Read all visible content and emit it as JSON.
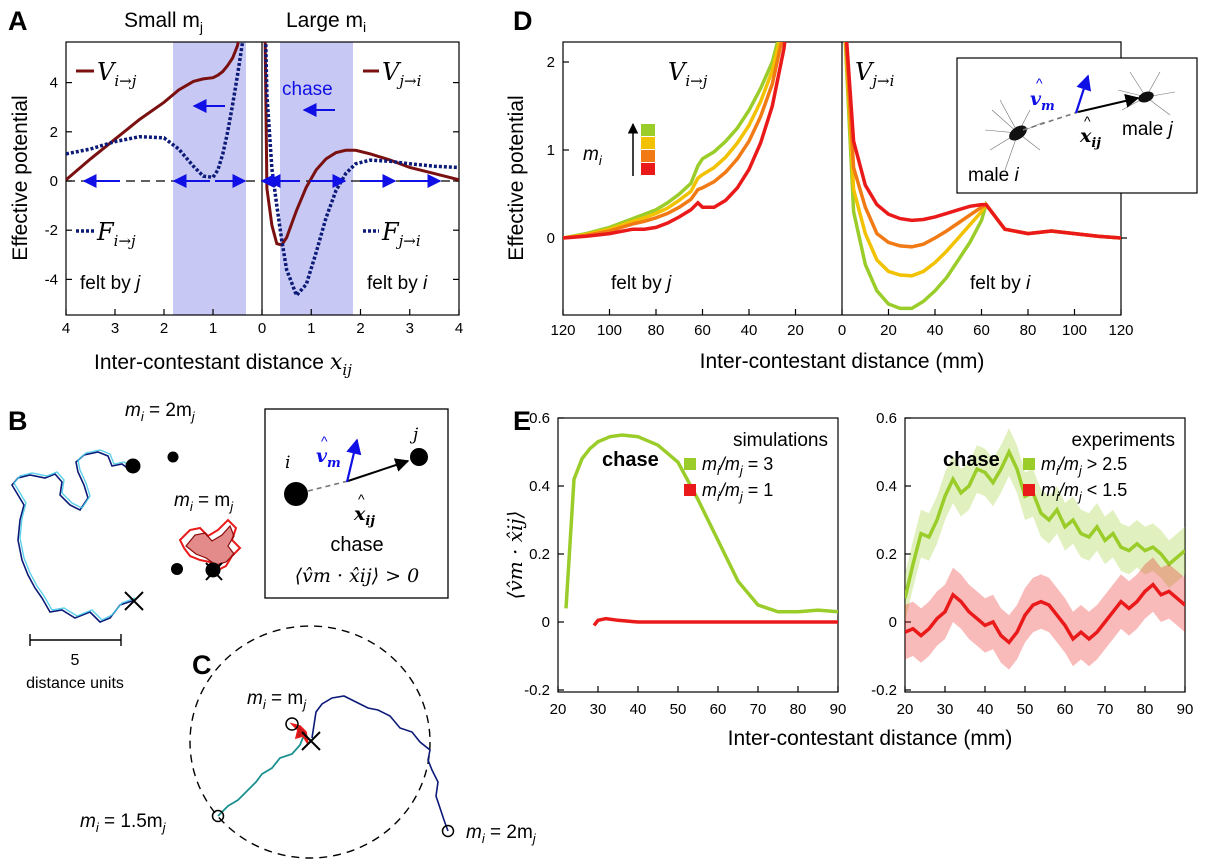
{
  "colors": {
    "dark_red": "#7a1010",
    "navy": "#0c1a78",
    "blue_arrow": "#1010e6",
    "shade": "#c8c8f4",
    "lime": "#9acd2a",
    "yellow": "#f2c200",
    "orange": "#f27a14",
    "red": "#ea1a1a",
    "cyan": "#40c8e8",
    "teal": "#1b9090"
  },
  "panel_labels": {
    "a": "A",
    "b": "B",
    "c": "C",
    "d": "D",
    "e": "E"
  },
  "panel_a": {
    "title_left": "Small m",
    "title_left_sub": "j",
    "title_right": "Large m",
    "title_right_sub": "i",
    "chase": "chase",
    "ylabel": "Effective potential",
    "xlabel": "Inter-contestant distance",
    "xlabel_symbol": "x",
    "xlabel_symbol_sub": "ij",
    "v_left": "V",
    "v_left_sub": "i→j",
    "v_right": "V",
    "v_right_sub": "j→i",
    "f_left": "F",
    "f_left_sub": "i→j",
    "f_right": "F",
    "f_right_sub": "j→i",
    "felt_left": "felt by ",
    "felt_left_var": "j",
    "felt_right": "felt by ",
    "felt_right_var": "i",
    "xticks": [
      "4",
      "3",
      "2",
      "1",
      "0",
      "1",
      "2",
      "3",
      "4"
    ],
    "yticks": [
      "4",
      "2",
      "0",
      "-2",
      "-4"
    ],
    "chart_data": {
      "type": "line",
      "x_left": [
        4.0,
        3.5,
        3.0,
        2.5,
        2.0,
        1.7,
        1.4,
        1.2,
        1.0,
        0.9,
        0.8,
        0.7,
        0.6,
        0.5,
        0.4,
        0.35
      ],
      "V_i_to_j": [
        0.05,
        0.9,
        1.7,
        2.5,
        3.2,
        3.7,
        4.05,
        4.15,
        4.2,
        4.3,
        4.45,
        4.7,
        5.0,
        5.5,
        6.5,
        8.0
      ],
      "F_i_to_j": [
        1.1,
        1.3,
        1.6,
        1.8,
        1.75,
        1.3,
        0.6,
        0.2,
        0.15,
        0.45,
        1.1,
        2.0,
        3.1,
        4.3,
        5.6,
        7.0
      ],
      "x_right": [
        0.05,
        0.1,
        0.2,
        0.3,
        0.4,
        0.5,
        0.7,
        0.9,
        1.1,
        1.3,
        1.5,
        1.7,
        1.9,
        2.2,
        2.6,
        3.0,
        3.5,
        4.0
      ],
      "V_j_to_i": [
        8.0,
        -0.3,
        -1.8,
        -2.55,
        -2.6,
        -2.3,
        -1.2,
        -0.25,
        0.45,
        0.9,
        1.15,
        1.25,
        1.25,
        1.1,
        0.85,
        0.55,
        0.3,
        0.05
      ],
      "F_j_to_i": [
        8.0,
        3.5,
        0.5,
        -1.0,
        -2.4,
        -3.6,
        -4.65,
        -4.2,
        -2.9,
        -1.5,
        -0.4,
        0.3,
        0.7,
        0.85,
        0.8,
        0.7,
        0.6,
        0.55
      ],
      "xlim": [
        0,
        4
      ],
      "ylim": [
        -5,
        5
      ]
    }
  },
  "panel_d": {
    "ylabel": "Effective potential",
    "xlabel": "Inter-contestant distance (mm)",
    "v_left": "V",
    "v_left_sub": "i→j",
    "v_right": "V",
    "v_right_sub": "j→i",
    "felt_left": "felt by ",
    "felt_left_var": "j",
    "felt_right": "felt by ",
    "felt_right_var": "i",
    "legend_var": "m",
    "legend_sub": "i",
    "xticks": [
      "120",
      "100",
      "80",
      "60",
      "40",
      "20",
      "0",
      "20",
      "40",
      "60",
      "80",
      "100",
      "120"
    ],
    "yticks": [
      "2",
      "1",
      "0"
    ],
    "inset": {
      "vm": "v",
      "vm_sub": "m",
      "xij": "x",
      "xij_sub": "ij",
      "male_i": "male ",
      "male_i_var": "i",
      "male_j": "male ",
      "male_j_var": "j"
    },
    "chart_data": {
      "type": "line",
      "x_left_mm": [
        120,
        110,
        100,
        90,
        85,
        80,
        75,
        70,
        65,
        62,
        60,
        55,
        50,
        45,
        40,
        35,
        30,
        25,
        20
      ],
      "x_right_mm": [
        0,
        5,
        10,
        15,
        20,
        25,
        30,
        35,
        40,
        45,
        50,
        55,
        60,
        62,
        70,
        80,
        90,
        100,
        110,
        120
      ],
      "series": [
        {
          "color": "lime",
          "left": [
            0.0,
            0.05,
            0.12,
            0.22,
            0.27,
            0.32,
            0.4,
            0.5,
            0.62,
            0.82,
            0.9,
            0.98,
            1.1,
            1.25,
            1.45,
            1.7,
            2.0,
            2.5,
            3.2
          ],
          "right": [
            3.0,
            0.3,
            -0.3,
            -0.6,
            -0.75,
            -0.8,
            -0.8,
            -0.72,
            -0.6,
            -0.45,
            -0.25,
            -0.05,
            0.2,
            0.38,
            0.1,
            0.05,
            0.08,
            0.05,
            0.02,
            0.0
          ]
        },
        {
          "color": "yellow",
          "left": [
            0.0,
            0.04,
            0.1,
            0.19,
            0.23,
            0.28,
            0.34,
            0.43,
            0.53,
            0.68,
            0.72,
            0.8,
            0.92,
            1.08,
            1.28,
            1.55,
            1.9,
            2.45,
            3.2
          ],
          "right": [
            3.0,
            0.55,
            0.05,
            -0.25,
            -0.38,
            -0.42,
            -0.43,
            -0.38,
            -0.28,
            -0.15,
            0.0,
            0.15,
            0.3,
            0.38,
            0.1,
            0.05,
            0.08,
            0.05,
            0.02,
            0.0
          ]
        },
        {
          "color": "orange",
          "left": [
            0.0,
            0.03,
            0.08,
            0.16,
            0.19,
            0.23,
            0.28,
            0.35,
            0.44,
            0.55,
            0.57,
            0.64,
            0.75,
            0.9,
            1.1,
            1.38,
            1.75,
            2.35,
            3.2
          ],
          "right": [
            3.0,
            0.8,
            0.35,
            0.05,
            -0.05,
            -0.09,
            -0.1,
            -0.07,
            0.0,
            0.08,
            0.17,
            0.26,
            0.35,
            0.38,
            0.1,
            0.05,
            0.08,
            0.05,
            0.02,
            0.0
          ]
        },
        {
          "color": "red",
          "left": [
            0.0,
            0.02,
            0.05,
            0.1,
            0.1,
            0.12,
            0.17,
            0.24,
            0.32,
            0.4,
            0.35,
            0.35,
            0.43,
            0.57,
            0.78,
            1.08,
            1.5,
            2.15,
            3.2
          ],
          "right": [
            3.0,
            1.1,
            0.6,
            0.38,
            0.27,
            0.22,
            0.2,
            0.21,
            0.24,
            0.28,
            0.32,
            0.36,
            0.38,
            0.38,
            0.1,
            0.05,
            0.08,
            0.05,
            0.02,
            0.0
          ]
        }
      ],
      "ylim": [
        -0.9,
        2.2
      ]
    }
  },
  "panel_b": {
    "title_a": "m",
    "title_a_sub": "i",
    "title_a_eq": " = 2m",
    "title_a_sub2": "j",
    "title_b": "m",
    "title_b_sub": "i",
    "title_b_eq": " = m",
    "title_b_sub2": "j",
    "scale_value": "5",
    "scale_unit": "distance units",
    "inset": {
      "i": "i",
      "j": "j",
      "vm": "v",
      "vm_sub": "m",
      "xij": "x",
      "xij_sub": "ij",
      "chase": "chase",
      "formula": "⟨v̂m · x̂ij⟩ > 0"
    }
  },
  "panel_c": {
    "label_eq": "m",
    "label_eq_sub": "i",
    "label_eq_rest": " = m",
    "label_eq_sub2": "j",
    "label_15": "m",
    "label_15_sub": "i",
    "label_15_rest": " = 1.5m",
    "label_15_sub2": "j",
    "label_2": "m",
    "label_2_sub": "i",
    "label_2_rest": " = 2m",
    "label_2_sub2": "j"
  },
  "panel_e": {
    "ylabel": "⟨v̂m · x̂ij⟩",
    "xlabel": "Inter-contestant distance (mm)",
    "chase": "chase",
    "left_title": "simulations",
    "left_legend": [
      {
        "pre": "m",
        "sub": "i",
        "mid": "/m",
        "sub2": "j",
        "post": " = 3",
        "color": "lime"
      },
      {
        "pre": "m",
        "sub": "i",
        "mid": "/m",
        "sub2": "j",
        "post": " = 1",
        "color": "red"
      }
    ],
    "right_title": "experiments",
    "right_legend": [
      {
        "pre": "m",
        "sub": "i",
        "mid": "/m",
        "sub2": "j",
        "post": " > 2.5",
        "color": "lime"
      },
      {
        "pre": "m",
        "sub": "i",
        "mid": "/m",
        "sub2": "j",
        "post": " < 1.5",
        "color": "red"
      }
    ],
    "xticks_left": [
      "20",
      "30",
      "40",
      "50",
      "60",
      "70",
      "80",
      "90"
    ],
    "xticks_right": [
      "20",
      "30",
      "40",
      "50",
      "60",
      "70",
      "80",
      "90"
    ],
    "yticks": [
      "0.6",
      "0.4",
      "0.2",
      "0",
      "-0.2"
    ],
    "chart_data": [
      {
        "type": "line",
        "xlim": [
          20,
          90
        ],
        "ylim": [
          -0.2,
          0.6
        ],
        "series": [
          {
            "name": "m_i/m_j = 3",
            "x": [
              22,
              24,
              26,
              28,
              30,
              33,
              36,
              40,
              45,
              50,
              55,
              60,
              65,
              70,
              75,
              80,
              85,
              90
            ],
            "y": [
              0.04,
              0.42,
              0.48,
              0.51,
              0.53,
              0.545,
              0.55,
              0.545,
              0.52,
              0.47,
              0.36,
              0.24,
              0.12,
              0.05,
              0.03,
              0.03,
              0.035,
              0.03
            ]
          },
          {
            "name": "m_i/m_j = 1",
            "x": [
              29,
              30,
              32,
              35,
              40,
              50,
              60,
              70,
              80,
              90
            ],
            "y": [
              -0.01,
              0.005,
              0.01,
              0.005,
              0.0,
              0.0,
              0.0,
              0.0,
              0.0,
              0.0
            ]
          }
        ]
      },
      {
        "type": "area",
        "xlim": [
          20,
          90
        ],
        "ylim": [
          -0.2,
          0.6
        ],
        "series": [
          {
            "name": "m_i/m_j > 2.5",
            "x": [
              20,
              22,
              24,
              26,
              28,
              30,
              32,
              34,
              36,
              38,
              40,
              42,
              44,
              46,
              48,
              50,
              52,
              54,
              56,
              58,
              60,
              62,
              64,
              66,
              68,
              70,
              72,
              74,
              76,
              78,
              80,
              82,
              84,
              86,
              88,
              90
            ],
            "y": [
              0.07,
              0.17,
              0.26,
              0.25,
              0.3,
              0.37,
              0.42,
              0.38,
              0.4,
              0.45,
              0.44,
              0.41,
              0.45,
              0.5,
              0.45,
              0.37,
              0.38,
              0.32,
              0.3,
              0.33,
              0.28,
              0.3,
              0.26,
              0.25,
              0.28,
              0.24,
              0.26,
              0.22,
              0.21,
              0.23,
              0.21,
              0.22,
              0.2,
              0.17,
              0.19,
              0.21
            ],
            "band": 0.07
          },
          {
            "name": "m_i/m_j < 1.5",
            "x": [
              20,
              22,
              24,
              26,
              28,
              30,
              32,
              34,
              36,
              38,
              40,
              42,
              44,
              46,
              48,
              50,
              52,
              54,
              56,
              58,
              60,
              62,
              64,
              66,
              68,
              70,
              72,
              74,
              76,
              78,
              80,
              82,
              84,
              86,
              88,
              90
            ],
            "y": [
              -0.03,
              -0.02,
              -0.04,
              -0.02,
              0.01,
              0.03,
              0.08,
              0.06,
              0.03,
              0.01,
              -0.01,
              0.0,
              -0.04,
              -0.06,
              -0.03,
              0.02,
              0.05,
              0.06,
              0.05,
              0.02,
              -0.01,
              -0.05,
              -0.03,
              -0.05,
              -0.03,
              0.0,
              0.03,
              0.06,
              0.04,
              0.06,
              0.09,
              0.11,
              0.08,
              0.09,
              0.07,
              0.05
            ],
            "band": 0.08
          }
        ]
      }
    ]
  }
}
